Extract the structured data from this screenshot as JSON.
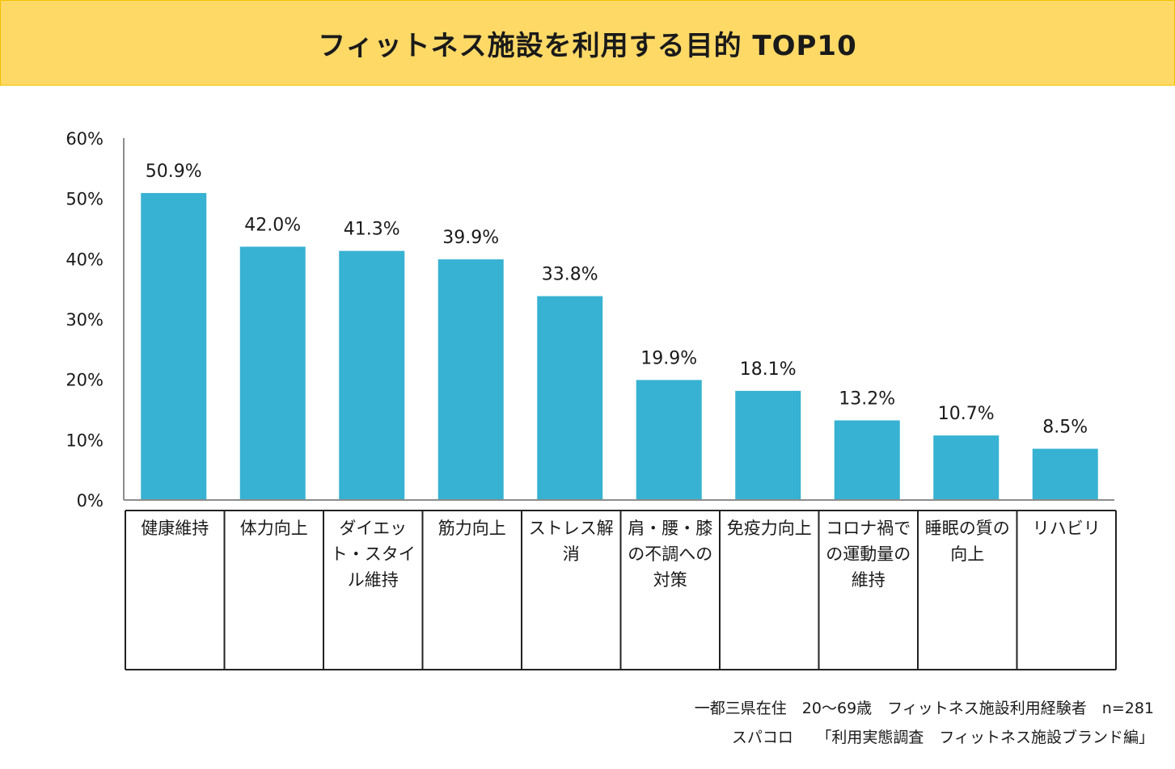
{
  "chart_data": {
    "type": "bar",
    "title": "フィットネス施設を利用する目的 TOP10",
    "categories": [
      "健康維持",
      "体力向上",
      "ダイエット・スタイル維持",
      "筋力向上",
      "ストレス解消",
      "肩・腰・膝の不調への対策",
      "免疫力向上",
      "コロナ禍での運動量の維持",
      "睡眠の質の向上",
      "リハビリ"
    ],
    "values": [
      50.9,
      42.0,
      41.3,
      39.9,
      33.8,
      19.9,
      18.1,
      13.2,
      10.7,
      8.5
    ],
    "data_labels": [
      "50.9%",
      "42.0%",
      "41.3%",
      "39.9%",
      "33.8%",
      "19.9%",
      "18.1%",
      "13.2%",
      "10.7%",
      "8.5%"
    ],
    "yticks": [
      "0%",
      "10%",
      "20%",
      "30%",
      "40%",
      "50%",
      "60%"
    ],
    "ylim": [
      0,
      60
    ],
    "xlabel": "",
    "ylabel": "",
    "grid": false,
    "bar_color": "#37b2d2"
  },
  "footnotes": {
    "line1": "一都三県在住　20～69歳　フィットネス施設利用経験者　n=281",
    "line2": "スパコロ　　「利用実態調査　フィットネス施設ブランド編」"
  },
  "colors": {
    "banner_background": "#ffd966",
    "banner_border": "#f2c200"
  }
}
